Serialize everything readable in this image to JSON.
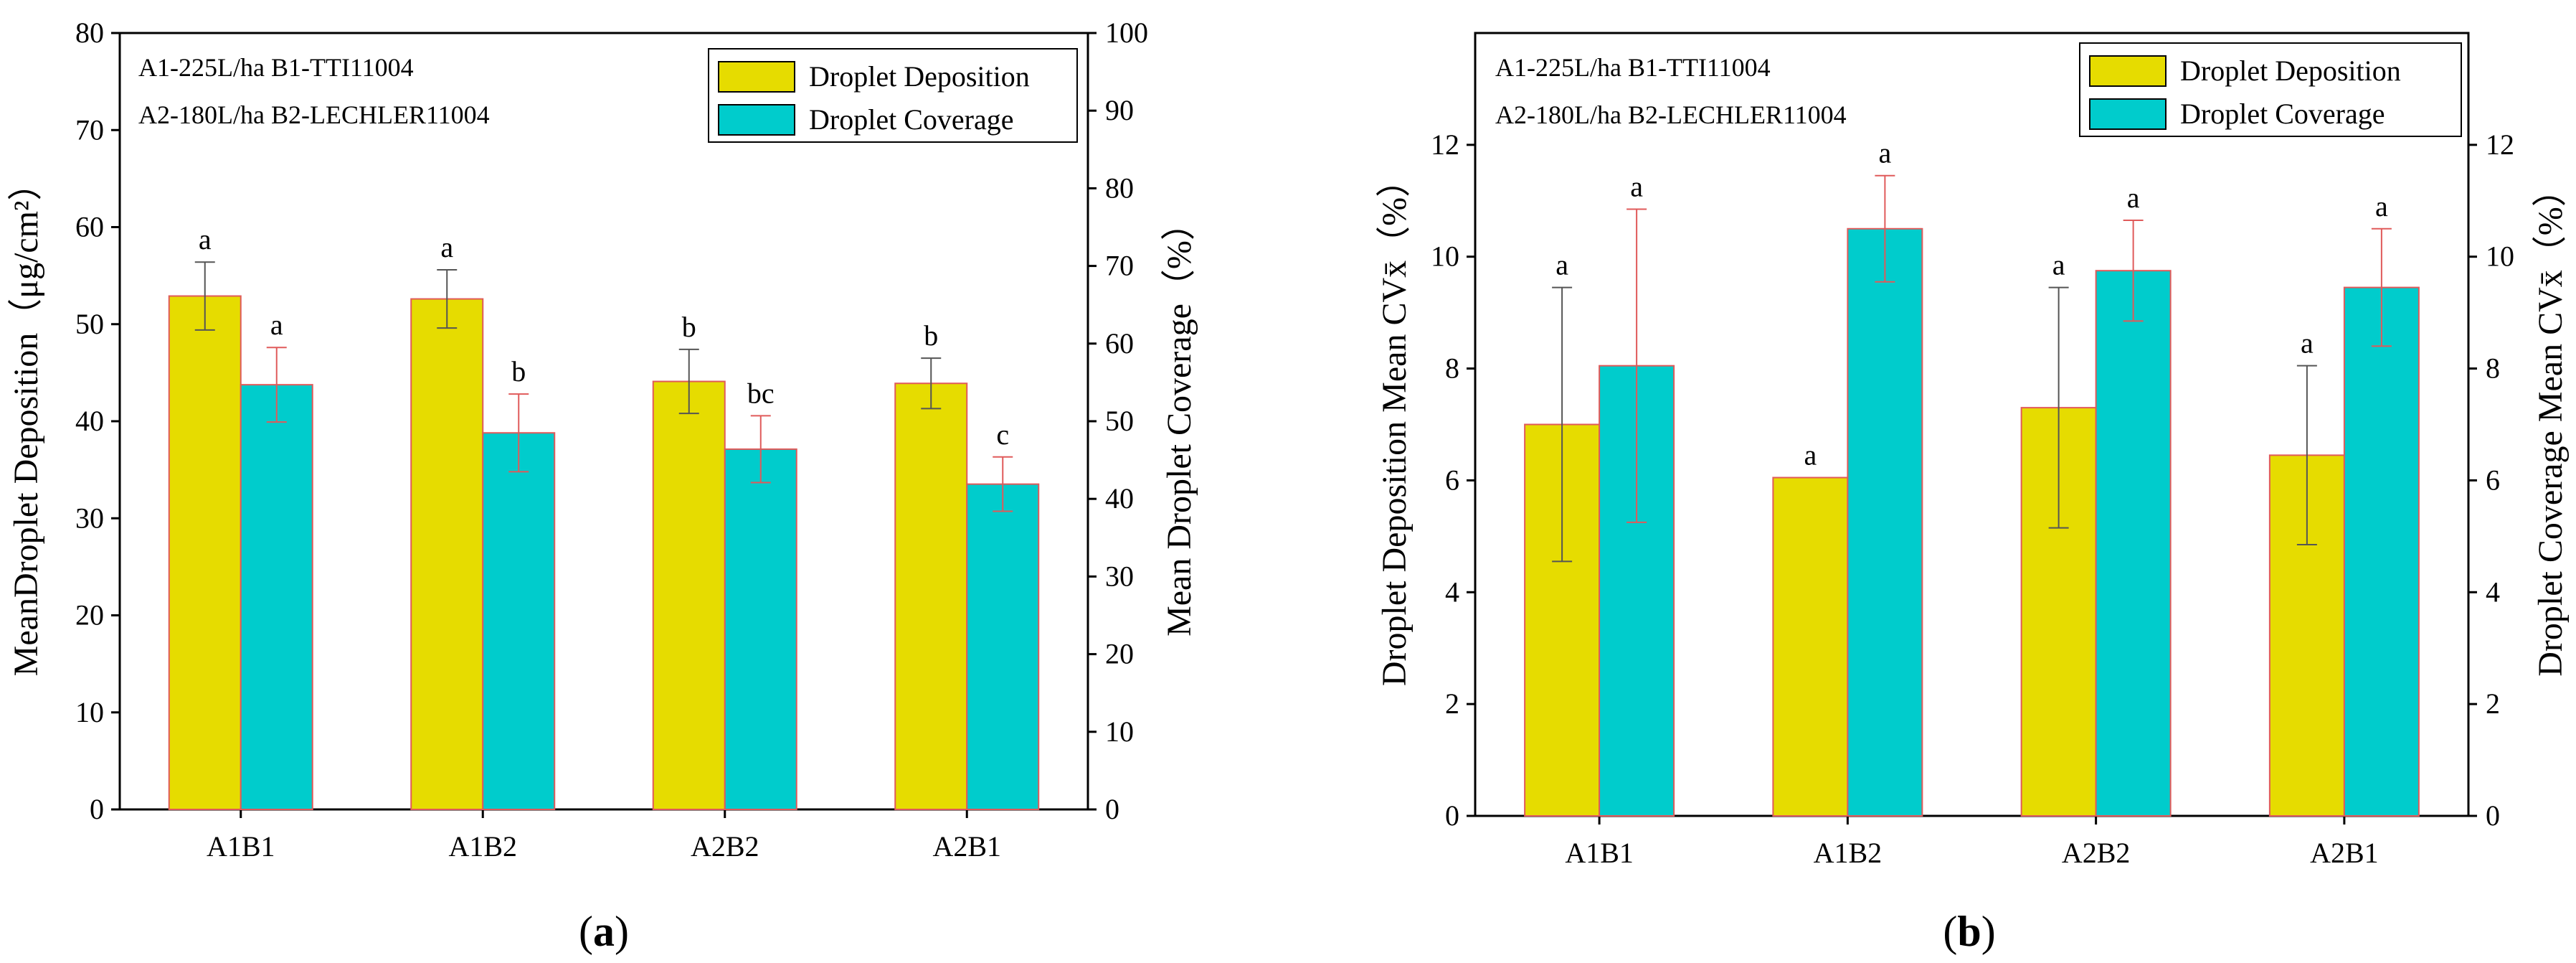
{
  "chart_data": [
    {
      "type": "bar",
      "panel": "a",
      "caption_open": "(",
      "caption_letter": "a",
      "caption_close": ")",
      "categories": [
        "A1B1",
        "A1B2",
        "A2B2",
        "A2B1"
      ],
      "ylabel": "MeanDroplet Deposition（μg/cm²）",
      "y2label": "Mean Droplet Coverage（%）",
      "ylim": [
        0,
        80
      ],
      "y2lim": [
        0,
        100
      ],
      "yticks": [
        0,
        10,
        20,
        30,
        40,
        50,
        60,
        70,
        80
      ],
      "y2ticks": [
        0,
        10,
        20,
        30,
        40,
        50,
        60,
        70,
        80,
        90,
        100
      ],
      "annotations": [
        "A1-225L/ha   B1-TTI11004",
        "A2-180L/ha   B2-LECHLER11004"
      ],
      "legend": [
        "Droplet Deposition",
        "Droplet Coverage"
      ],
      "series": [
        {
          "name": "Droplet Deposition",
          "axis": "left",
          "color": "#e6dc00",
          "values": [
            52.9,
            52.6,
            44.1,
            43.9
          ],
          "errors": [
            3.5,
            3.0,
            3.3,
            2.6
          ],
          "letters": [
            "a",
            "a",
            "b",
            "b"
          ]
        },
        {
          "name": "Droplet Coverage",
          "axis": "right",
          "color": "#00cccc",
          "values": [
            54.7,
            48.5,
            46.4,
            41.9
          ],
          "errors": [
            4.8,
            5.0,
            4.3,
            3.5
          ],
          "letters": [
            "a",
            "b",
            "bc",
            "c"
          ]
        }
      ]
    },
    {
      "type": "bar",
      "panel": "b",
      "caption_open": "(",
      "caption_letter": "b",
      "caption_close": ")",
      "categories": [
        "A1B1",
        "A1B2",
        "A2B2",
        "A2B1"
      ],
      "ylabel": "Droplet Deposition Mean CVx̄（%）",
      "y2label": "Droplet Coverage Mean CVx̄（%）",
      "ylim": [
        0,
        14
      ],
      "y2lim": [
        0,
        14
      ],
      "yticks": [
        0,
        2,
        4,
        6,
        8,
        10,
        12
      ],
      "y2ticks": [
        0,
        2,
        4,
        6,
        8,
        10,
        12
      ],
      "annotations": [
        "A1-225L/ha   B1-TTI11004",
        "A2-180L/ha   B2-LECHLER11004"
      ],
      "legend": [
        "Droplet  Deposition",
        "Droplet  Coverage"
      ],
      "series": [
        {
          "name": "Droplet Deposition",
          "axis": "left",
          "color": "#e6dc00",
          "values": [
            7.0,
            6.05,
            7.3,
            6.45
          ],
          "errors": [
            2.45,
            0,
            2.15,
            1.6
          ],
          "letters": [
            "a",
            "a",
            "a",
            "a"
          ]
        },
        {
          "name": "Droplet Coverage",
          "axis": "right",
          "color": "#00cccc",
          "values": [
            8.05,
            10.5,
            9.75,
            9.45
          ],
          "errors": [
            2.8,
            0.95,
            0.9,
            1.05
          ],
          "letters": [
            "a",
            "a",
            "a",
            "a"
          ]
        }
      ]
    }
  ]
}
